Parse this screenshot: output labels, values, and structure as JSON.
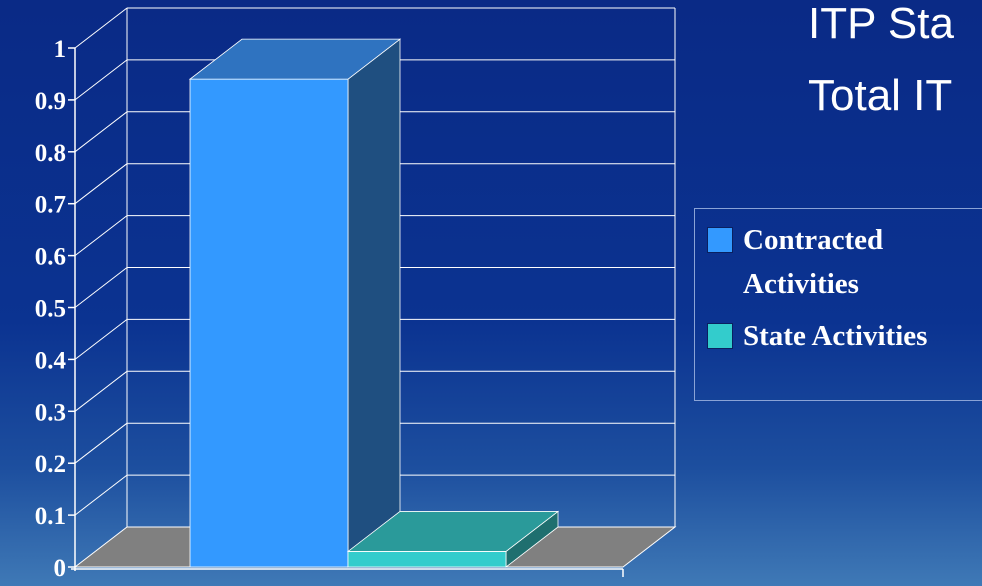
{
  "title_lines": [
    "ITP Sta",
    "Total IT"
  ],
  "chart_data": {
    "type": "bar",
    "categories": [
      ""
    ],
    "series": [
      {
        "name": "Contracted Activities",
        "name_lines": [
          "Contracted",
          "Activities"
        ],
        "values": [
          0.94
        ],
        "color": "#3399ff"
      },
      {
        "name": "State Activities",
        "name_lines": [
          "State Activities"
        ],
        "values": [
          0.03
        ],
        "color": "#33cccc"
      }
    ],
    "ylim": [
      0,
      1
    ],
    "yticks": [
      "0",
      "0.1",
      "0.2",
      "0.3",
      "0.4",
      "0.5",
      "0.6",
      "0.7",
      "0.8",
      "0.9",
      "1"
    ],
    "grid": true,
    "legend": "right",
    "three_d": true,
    "colors": {
      "wall_lines": "#ffffff",
      "floor": "#808080",
      "series1_side": "#1f4f80",
      "series1_top": "#2f73c0",
      "series2_side": "#1f6f6f",
      "series2_top": "#2a9a9a"
    }
  }
}
